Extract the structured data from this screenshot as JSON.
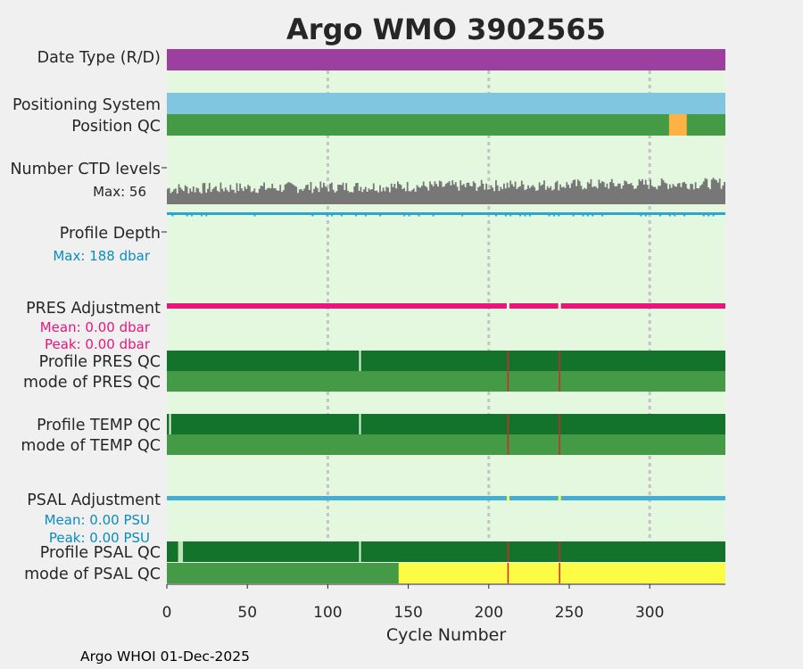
{
  "chart_data": {
    "type": "timeline",
    "title": "Argo WMO 3902565",
    "xlabel": "Cycle Number",
    "xlim": [
      0,
      347
    ],
    "xticks": [
      0,
      50,
      100,
      150,
      200,
      250,
      300
    ],
    "grid_x": [
      100,
      200,
      300
    ],
    "footer": "Argo WHOI 01-Dec-2025",
    "colors": {
      "title": "#0a8cbf",
      "background": "#e4f8df",
      "date_type": "#9c3f9f",
      "positioning": "#80c6e0",
      "qc_good": "#459b45",
      "qc_good_dark": "#13732b",
      "qc_orange": "#fdb244",
      "qc_yellow": "#fdfc44",
      "qc_red": "#d62728",
      "ctd": "#777777",
      "depth": "#2ba6d3",
      "pres_adj": "#e6167c",
      "psal_adj": "#45aed2"
    },
    "rows": {
      "date_type": {
        "label": "Date Type (R/D)"
      },
      "positioning": {
        "label": "Positioning System"
      },
      "position_qc": {
        "label": "Position QC",
        "orange_range": [
          312,
          323
        ]
      },
      "ctd": {
        "label": "Number CTD levels",
        "max_label": "Max: 56",
        "max": 56
      },
      "depth": {
        "label": "Profile Depth",
        "max_label": "Max:  188 dbar",
        "max": 188
      },
      "pres_adj": {
        "label": "PRES Adjustment",
        "mean_label": "Mean: 0.00 dbar",
        "peak_label": "Peak: 0.00 dbar",
        "gaps": [
          212,
          244
        ]
      },
      "profile_pres_qc": {
        "label": "Profile PRES QC",
        "white_marks": [
          120
        ],
        "red_marks": [
          212,
          244
        ]
      },
      "mode_pres_qc": {
        "label": "mode of PRES QC",
        "red_marks": [
          212,
          244
        ]
      },
      "profile_temp_qc": {
        "label": "Profile TEMP QC",
        "white_marks": [
          2,
          120
        ],
        "red_marks": [
          212,
          244
        ]
      },
      "mode_temp_qc": {
        "label": "mode of TEMP QC",
        "red_marks": [
          212,
          244
        ]
      },
      "psal_adj": {
        "label": "PSAL Adjustment",
        "mean_label": "Mean: 0.00 PSU",
        "peak_label": "Peak: 0.00 PSU",
        "gaps": [
          212,
          244
        ]
      },
      "profile_psal_qc": {
        "label": "Profile PSAL QC",
        "light_range": [
          7,
          10
        ],
        "white_marks": [
          120
        ],
        "red_marks": [
          212,
          244
        ]
      },
      "mode_psal_qc": {
        "label": "mode of PSAL QC",
        "yellow_from": 144,
        "red_marks": [
          212,
          244
        ]
      }
    }
  }
}
